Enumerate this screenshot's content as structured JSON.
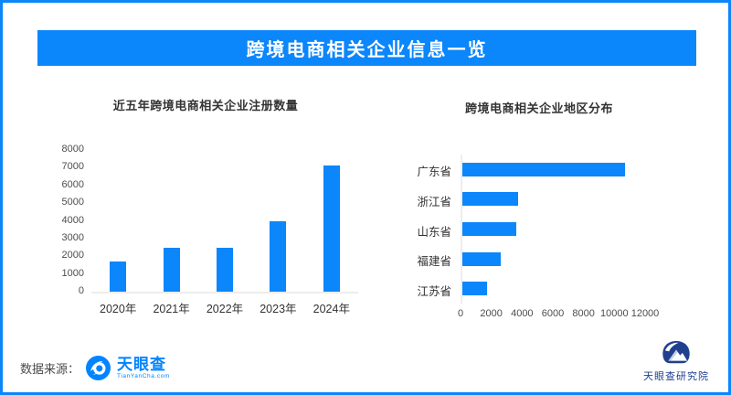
{
  "header": {
    "title": "跨境电商相关企业信息一览"
  },
  "chart_data": [
    {
      "type": "bar",
      "title": "近五年跨境电商相关企业注册数量",
      "categories": [
        "2020年",
        "2021年",
        "2022年",
        "2023年",
        "2024年"
      ],
      "values": [
        1700,
        2500,
        2500,
        4000,
        7100
      ],
      "xlabel": "",
      "ylabel": "",
      "ylim": [
        0,
        8000
      ],
      "ytick_step": 1000,
      "grid": false,
      "legend": "none",
      "bar_color": "#0b86fb"
    },
    {
      "type": "bar-horizontal",
      "title": "跨境电商相关企业地区分布",
      "categories": [
        "广东省",
        "浙江省",
        "山东省",
        "福建省",
        "江苏省"
      ],
      "values": [
        10600,
        3650,
        3500,
        2500,
        1600
      ],
      "xlabel": "",
      "ylabel": "",
      "xlim": [
        0,
        12000
      ],
      "xtick_step": 2000,
      "grid": false,
      "legend": "none",
      "bar_color": "#0b86fb"
    }
  ],
  "footer": {
    "source_label": "数据来源：",
    "source_logo_name": "天眼查",
    "source_logo_sub": "TianYanCha.com",
    "institute_name": "天眼查研究院"
  },
  "colors": {
    "accent_blue": "#0b86fb",
    "tianyancha_blue": "#0084ff",
    "institute_navy": "#20408f",
    "text_dark": "#333333",
    "tick_gray": "#4d4d4d"
  }
}
